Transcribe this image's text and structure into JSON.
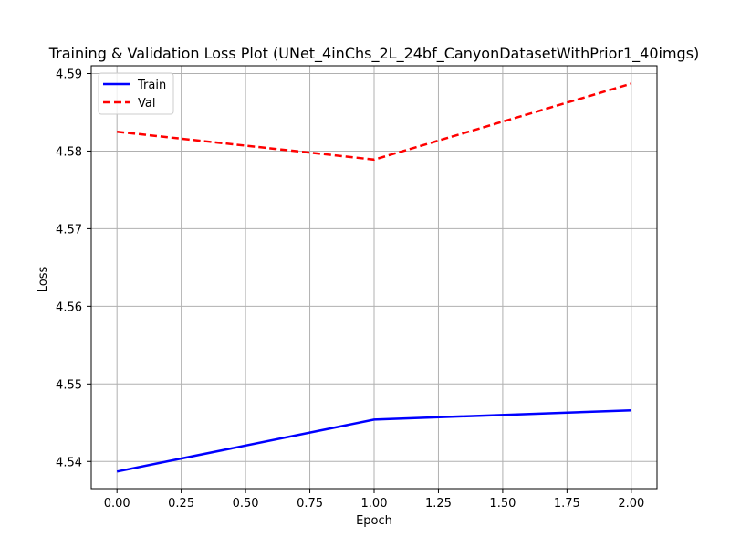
{
  "chart_data": {
    "type": "line",
    "title": "Training & Validation Loss Plot (UNet_4inChs_2L_24bf_CanyonDatasetWithPrior1_40imgs)",
    "xlabel": "Epoch",
    "ylabel": "Loss",
    "x": [
      0,
      1,
      2
    ],
    "xlim": [
      -0.1,
      2.1
    ],
    "ylim": [
      4.5365,
      4.591
    ],
    "xticks": [
      "0.00",
      "0.25",
      "0.50",
      "0.75",
      "1.00",
      "1.25",
      "1.50",
      "1.75",
      "2.00"
    ],
    "yticks": [
      "4.54",
      "4.55",
      "4.56",
      "4.57",
      "4.58",
      "4.59"
    ],
    "grid": true,
    "legend_position": "top-left",
    "series": [
      {
        "name": "Train",
        "values": [
          4.5387,
          4.5454,
          4.5466
        ],
        "color": "#0000ff",
        "line_style": "solid"
      },
      {
        "name": "Val",
        "values": [
          4.5825,
          4.5789,
          4.5887
        ],
        "color": "#ff0000",
        "line_style": "dashed"
      }
    ]
  }
}
